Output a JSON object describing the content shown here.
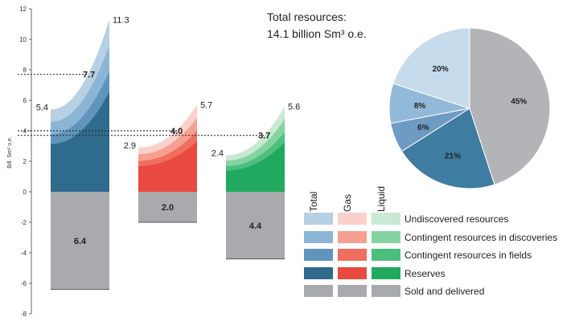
{
  "chart_data": [
    {
      "type": "area",
      "ylabel": "Bill. Sm³ o.e.",
      "ylim": [
        -8,
        12
      ],
      "yticks": [
        -8,
        -6,
        -4,
        -2,
        0,
        2,
        4,
        6,
        8,
        10,
        12
      ],
      "reference_lines": [
        {
          "value": 7.7,
          "label": "7.7"
        },
        {
          "value": 4.0,
          "label": "4.0"
        },
        {
          "value": 3.7,
          "label": "3.7"
        }
      ],
      "groups": [
        {
          "name": "Total",
          "start_total": 5.4,
          "end_total": 11.3,
          "start_label": "5.4",
          "end_label": "11.3",
          "sold_delivered": 6.4,
          "sold_label": "6.4",
          "colors": [
            "#2f6b8d",
            "#5f94bd",
            "#8bb5d5",
            "#b6d0e4"
          ]
        },
        {
          "name": "Gas",
          "start_total": 2.9,
          "end_total": 5.7,
          "start_label": "2.9",
          "end_label": "5.7",
          "sold_delivered": 2.0,
          "sold_label": "2.0",
          "colors": [
            "#e84a3f",
            "#ef6e5e",
            "#f5a090",
            "#fbd0cb"
          ]
        },
        {
          "name": "Liquid",
          "start_total": 2.4,
          "end_total": 5.6,
          "start_label": "2.4",
          "end_label": "5.6",
          "sold_delivered": 4.4,
          "sold_label": "4.4",
          "colors": [
            "#21a960",
            "#4cbf7e",
            "#86d3a2",
            "#c8e9d3"
          ]
        }
      ]
    },
    {
      "type": "pie",
      "title_line1": "Total resources:",
      "title_line2": "14.1 billion  Sm³ o.e.",
      "slices": [
        {
          "label": "45%",
          "value": 45,
          "color": "#b3b4b7"
        },
        {
          "label": "21%",
          "value": 21,
          "color": "#3f7ca1"
        },
        {
          "label": "6%",
          "value": 6,
          "color": "#6d9bc4"
        },
        {
          "label": "8%",
          "value": 8,
          "color": "#93b9d9"
        },
        {
          "label": "20%",
          "value": 20,
          "color": "#c6dbeb"
        }
      ]
    }
  ],
  "legend": {
    "columns": [
      "Total",
      "Gas",
      "Liquid"
    ],
    "rows": [
      {
        "label": "Undiscovered resources",
        "colors": [
          "#b6d0e4",
          "#fbd0cb",
          "#c8e9d3"
        ]
      },
      {
        "label": "Contingent resources in discoveries",
        "colors": [
          "#8bb5d5",
          "#f5a090",
          "#86d3a2"
        ]
      },
      {
        "label": "Contingent resources in fields",
        "colors": [
          "#5f94bd",
          "#ef6e5e",
          "#4cbf7e"
        ]
      },
      {
        "label": "Reserves",
        "colors": [
          "#2f6b8d",
          "#e84a3f",
          "#21a960"
        ]
      },
      {
        "label": "Sold and delivered",
        "colors": [
          "#a9aaad",
          "#a9aaad",
          "#a9aaad"
        ]
      }
    ]
  }
}
